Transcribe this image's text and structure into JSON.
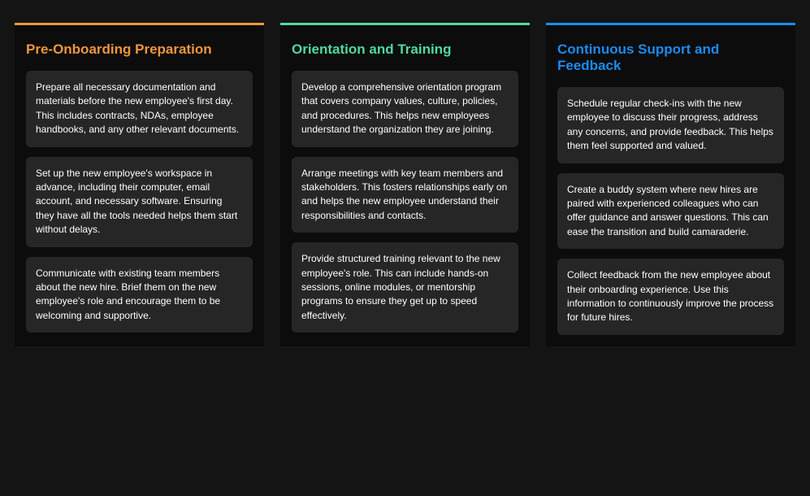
{
  "page": {
    "background_color": "#141414",
    "card_background_color": "#0c0c0c",
    "item_background_color": "#262626",
    "item_text_color": "#ffffff",
    "item_font_size": 12,
    "title_font_size": 17,
    "border_top_width": 3,
    "columns_gap": 20
  },
  "columns": [
    {
      "title": "Pre-Onboarding Preparation",
      "title_color": "#f0953f",
      "border_color": "#f0953f",
      "items": [
        "Prepare all necessary documentation and materials before the new employee's first day. This includes contracts, NDAs, employee handbooks, and any other relevant documents.",
        "Set up the new employee's workspace in advance, including their computer, email account, and necessary software. Ensuring they have all the tools needed helps them start without delays.",
        "Communicate with existing team members about the new hire. Brief them on the new employee's role and encourage them to be welcoming and supportive."
      ]
    },
    {
      "title": "Orientation and Training",
      "title_color": "#50d9a0",
      "border_color": "#50d9a0",
      "items": [
        "Develop a comprehensive orientation program that covers company values, culture, policies, and procedures. This helps new employees understand the organization they are joining.",
        "Arrange meetings with key team members and stakeholders. This fosters relationships early on and helps the new employee understand their responsibilities and contacts.",
        "Provide structured training relevant to the new employee's role. This can include hands-on sessions, online modules, or mentorship programs to ensure they get up to speed effectively."
      ]
    },
    {
      "title": "Continuous Support and Feedback",
      "title_color": "#1a8cf0",
      "border_color": "#1a8cf0",
      "items": [
        "Schedule regular check-ins with the new employee to discuss their progress, address any concerns, and provide feedback. This helps them feel supported and valued.",
        "Create a buddy system where new hires are paired with experienced colleagues who can offer guidance and answer questions. This can ease the transition and build camaraderie.",
        "Collect feedback from the new employee about their onboarding experience. Use this information to continuously improve the process for future hires."
      ]
    }
  ]
}
